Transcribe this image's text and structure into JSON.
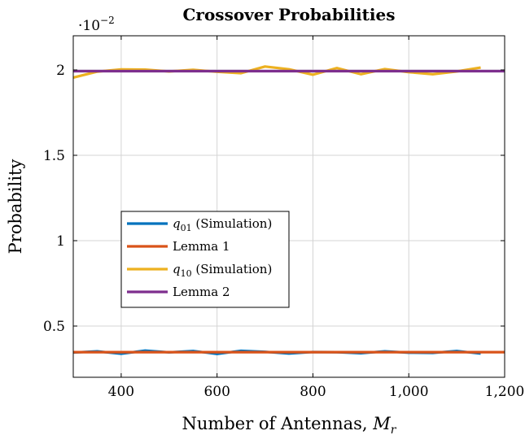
{
  "chart_data": {
    "type": "line",
    "title": "Crossover Probabilities",
    "xlabel": "Number of Antennas, M_r",
    "xlabel_main": "Number of Antennas, ",
    "xlabel_var": "M",
    "xlabel_sub": "r",
    "ylabel": "Probability",
    "y_multiplier": "·10^-2",
    "y_multiplier_base": "·10",
    "y_multiplier_exp": "−2",
    "xlim": [
      300,
      1200
    ],
    "ylim": [
      0.2,
      2.2
    ],
    "xticks": [
      400,
      600,
      800,
      1000,
      1200
    ],
    "xtick_labels": [
      "400",
      "600",
      "800",
      "1,000",
      "1,200"
    ],
    "yticks": [
      0.5,
      1,
      1.5,
      2
    ],
    "ytick_labels": [
      "0.5",
      "1",
      "1.5",
      "2"
    ],
    "grid": true,
    "legend_position": "left-middle",
    "series": [
      {
        "name": "q01 (Simulation)",
        "legend_var": "q",
        "legend_sub": "01",
        "legend_rest": " (Simulation)",
        "color": "#0072bd",
        "x": [
          300,
          350,
          400,
          450,
          500,
          550,
          600,
          650,
          700,
          750,
          800,
          850,
          900,
          950,
          1000,
          1050,
          1100,
          1150
        ],
        "y": [
          0.345,
          0.352,
          0.338,
          0.356,
          0.346,
          0.354,
          0.337,
          0.355,
          0.349,
          0.339,
          0.348,
          0.347,
          0.341,
          0.352,
          0.344,
          0.343,
          0.354,
          0.339
        ]
      },
      {
        "name": "Lemma 1",
        "legend_rest": "Lemma 1",
        "color": "#d95319",
        "x": [
          300,
          1200
        ],
        "y": [
          0.347,
          0.347
        ]
      },
      {
        "name": "q10 (Simulation)",
        "legend_var": "q",
        "legend_sub": "10",
        "legend_rest": " (Simulation)",
        "color": "#edb120",
        "x": [
          300,
          350,
          400,
          450,
          500,
          550,
          600,
          650,
          700,
          750,
          800,
          850,
          900,
          950,
          1000,
          1050,
          1100,
          1150
        ],
        "y": [
          1.955,
          1.99,
          2.003,
          2.002,
          1.991,
          2.001,
          1.989,
          1.981,
          2.02,
          2.004,
          1.972,
          2.011,
          1.975,
          2.005,
          1.987,
          1.975,
          1.991,
          2.014
        ]
      },
      {
        "name": "Lemma 2",
        "legend_rest": "Lemma 2",
        "color": "#7e2f8e",
        "x": [
          300,
          1200
        ],
        "y": [
          1.993,
          1.993
        ]
      }
    ]
  }
}
